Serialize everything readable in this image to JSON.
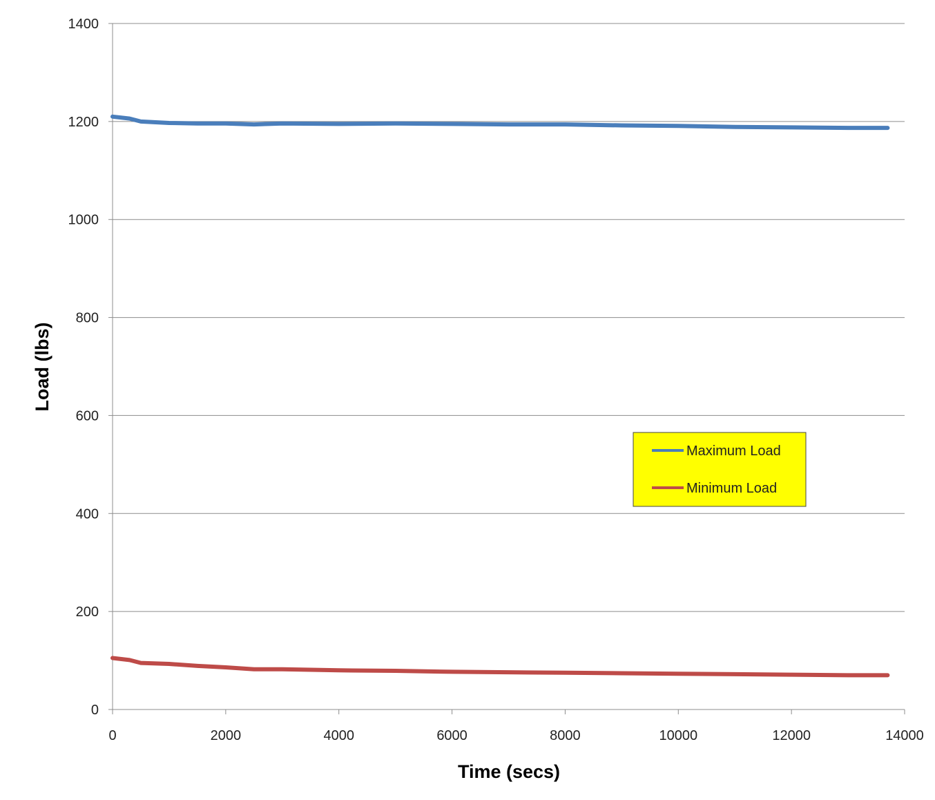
{
  "chart_data": {
    "type": "line",
    "xlabel": "Time  (secs)",
    "ylabel": "Load  (lbs)",
    "xlim": [
      0,
      14000
    ],
    "ylim": [
      0,
      1400
    ],
    "xticks": [
      0,
      2000,
      4000,
      6000,
      8000,
      10000,
      12000,
      14000
    ],
    "yticks": [
      0,
      200,
      400,
      600,
      800,
      1000,
      1200,
      1400
    ],
    "xtick_labels": [
      "0",
      "2000",
      "4000",
      "6000",
      "8000",
      "10000",
      "12000",
      "14000"
    ],
    "ytick_labels": [
      "0",
      "200",
      "400",
      "600",
      "800",
      "1000",
      "1200",
      "1400"
    ],
    "grid": "horizontal",
    "legend": {
      "placement": "center-right",
      "background": "#ffff00"
    },
    "series": [
      {
        "name": "Maximum Load",
        "color": "#4a7ebb",
        "x": [
          0,
          300,
          500,
          1000,
          1500,
          2000,
          2500,
          3000,
          4000,
          5000,
          6000,
          7000,
          8000,
          9000,
          10000,
          11000,
          12000,
          13000,
          13700
        ],
        "y": [
          1210,
          1206,
          1200,
          1197,
          1196,
          1196,
          1194,
          1196,
          1195,
          1196,
          1195,
          1194,
          1194,
          1192,
          1191,
          1189,
          1188,
          1187,
          1187
        ]
      },
      {
        "name": "Minimum Load",
        "color": "#be4b48",
        "x": [
          0,
          300,
          500,
          1000,
          1500,
          2000,
          2500,
          3000,
          4000,
          5000,
          6000,
          7000,
          8000,
          9000,
          10000,
          11000,
          12000,
          13000,
          13700
        ],
        "y": [
          105,
          101,
          95,
          93,
          89,
          86,
          82,
          82,
          80,
          79,
          77,
          76,
          75,
          74,
          73,
          72,
          71,
          70,
          70
        ]
      }
    ]
  }
}
